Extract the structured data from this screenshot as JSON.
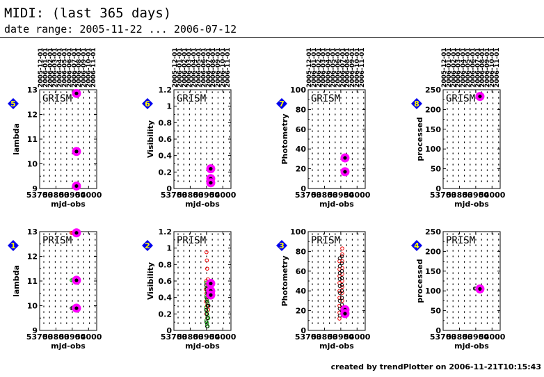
{
  "header": {
    "title": "MIDI: (last 365 days)",
    "subtitle": "date range: 2005-11-22 ... 2006-07-12"
  },
  "footer": {
    "text": "created by trendPlotter on 2006-11-21T10:15:43"
  },
  "colors": {
    "magenta": "#ff00ff",
    "badge": "#0000ee",
    "red": "#ee0000",
    "green": "#00bb00",
    "black": "#000000"
  },
  "chart_data": [
    {
      "type": "scatter",
      "id": "p5",
      "badge": "5",
      "label": "GRISM",
      "xlabel": "mjd-obs",
      "ylabel": "lambda",
      "xlim": [
        53700,
        54050
      ],
      "ylim": [
        9,
        13
      ],
      "xticks": [
        53700,
        53800,
        53900,
        54000
      ],
      "xtick_labels": [
        "53700",
        "53800",
        "53900",
        "54000"
      ],
      "yticks": [
        9,
        10,
        11,
        12,
        13
      ],
      "date_ticks": [
        "2005-12-01",
        "2006-01-01",
        "2006-02-01",
        "2006-03-01",
        "2006-04-01",
        "2006-05-01",
        "2006-06-01",
        "2006-07-01",
        "2006-08-01",
        "2006-09-01",
        "2006-10-01",
        "2006-11-01"
      ],
      "series": [
        {
          "style": "highlight",
          "points": [
            [
              53926,
              12.85
            ],
            [
              53926,
              10.5
            ],
            [
              53926,
              9.1
            ]
          ]
        }
      ]
    },
    {
      "type": "scatter",
      "id": "p6",
      "badge": "6",
      "label": "GRISM",
      "xlabel": "mjd-obs",
      "ylabel": "Visibility",
      "xlim": [
        53700,
        54050
      ],
      "ylim": [
        0,
        1.2
      ],
      "xticks": [
        53700,
        53800,
        53900,
        54000
      ],
      "xtick_labels": [
        "53700",
        "53800",
        "53900",
        "54000"
      ],
      "yticks": [
        0,
        0.2,
        0.4,
        0.6,
        0.8,
        1,
        1.2
      ],
      "date_ticks": [
        "2005-12-01",
        "2006-01-01",
        "2006-02-01",
        "2006-03-01",
        "2006-04-01",
        "2006-05-01",
        "2006-06-01",
        "2006-07-01",
        "2006-08-01",
        "2006-09-01",
        "2006-10-01",
        "2006-11-01"
      ],
      "series": [
        {
          "style": "highlight",
          "points": [
            [
              53926,
              0.24
            ],
            [
              53926,
              0.12
            ],
            [
              53926,
              0.07
            ]
          ]
        }
      ]
    },
    {
      "type": "scatter",
      "id": "p7",
      "badge": "7",
      "label": "GRISM",
      "xlabel": "mjd-obs",
      "ylabel": "Photometry",
      "xlim": [
        53700,
        54050
      ],
      "ylim": [
        0,
        100
      ],
      "xticks": [
        53700,
        53800,
        53900,
        54000
      ],
      "xtick_labels": [
        "53700",
        "53800",
        "53900",
        "54000"
      ],
      "yticks": [
        0,
        20,
        40,
        60,
        80,
        100
      ],
      "date_ticks": [
        "2005-12-01",
        "2006-01-01",
        "2006-02-01",
        "2006-03-01",
        "2006-04-01",
        "2006-05-01",
        "2006-06-01",
        "2006-07-01",
        "2006-08-01",
        "2006-09-01",
        "2006-10-01",
        "2006-11-01"
      ],
      "series": [
        {
          "style": "highlight",
          "points": [
            [
              53926,
              31
            ],
            [
              53926,
              17
            ]
          ]
        }
      ]
    },
    {
      "type": "scatter",
      "id": "p8",
      "badge": "8",
      "label": "GRISM",
      "xlabel": "mjd-obs",
      "ylabel": "processed",
      "xlim": [
        53700,
        54050
      ],
      "ylim": [
        0,
        250
      ],
      "xticks": [
        53700,
        53800,
        53900,
        54000
      ],
      "xtick_labels": [
        "53700",
        "53800",
        "53900",
        "54000"
      ],
      "yticks": [
        0,
        50,
        100,
        150,
        200,
        250
      ],
      "date_ticks": [
        "2005-12-01",
        "2006-01-01",
        "2006-02-01",
        "2006-03-01",
        "2006-04-01",
        "2006-05-01",
        "2006-06-01",
        "2006-07-01",
        "2006-08-01",
        "2006-09-01",
        "2006-10-01",
        "2006-11-01"
      ],
      "series": [
        {
          "style": "highlight",
          "points": [
            [
              53926,
              233
            ]
          ]
        }
      ]
    },
    {
      "type": "scatter",
      "id": "p1",
      "badge": "1",
      "label": "PRISM",
      "xlabel": "mjd-obs",
      "ylabel": "lambda",
      "xlim": [
        53700,
        54050
      ],
      "ylim": [
        9,
        13
      ],
      "xticks": [
        53700,
        53800,
        53900,
        54000
      ],
      "xtick_labels": [
        "53700",
        "53800",
        "53900",
        "54000"
      ],
      "yticks": [
        9,
        10,
        11,
        12,
        13
      ],
      "series": [
        {
          "style": "open-red",
          "points": [
            [
              53895,
              12.95
            ],
            [
              53901,
              12.95
            ],
            [
              53907,
              12.95
            ],
            [
              53913,
              12.95
            ]
          ]
        },
        {
          "style": "open-green",
          "points": [
            [
              53896,
              11.03
            ],
            [
              53902,
              11.03
            ],
            [
              53908,
              11.03
            ],
            [
              53914,
              11.03
            ]
          ]
        },
        {
          "style": "open-black",
          "points": [
            [
              53897,
              9.9
            ],
            [
              53903,
              9.9
            ],
            [
              53909,
              9.9
            ],
            [
              53915,
              9.9
            ]
          ]
        },
        {
          "style": "highlight",
          "points": [
            [
              53926,
              12.95
            ],
            [
              53926,
              11.03
            ],
            [
              53926,
              9.9
            ]
          ]
        }
      ]
    },
    {
      "type": "scatter",
      "id": "p2",
      "badge": "2",
      "label": "PRISM",
      "xlabel": "mjd-obs",
      "ylabel": "Visibility",
      "xlim": [
        53700,
        54050
      ],
      "ylim": [
        0,
        1.2
      ],
      "xticks": [
        53700,
        53800,
        53900,
        54000
      ],
      "xtick_labels": [
        "53700",
        "53800",
        "53900",
        "54000"
      ],
      "yticks": [
        0,
        0.2,
        0.4,
        0.6,
        0.8,
        1,
        1.2
      ],
      "series": [
        {
          "style": "open-red",
          "points": [
            [
              53900,
              0.95
            ],
            [
              53902,
              0.85
            ],
            [
              53904,
              0.75
            ],
            [
              53898,
              0.6
            ],
            [
              53906,
              0.55
            ],
            [
              53900,
              0.45
            ],
            [
              53908,
              0.4
            ],
            [
              53896,
              0.35
            ],
            [
              53903,
              0.3
            ],
            [
              53910,
              0.25
            ],
            [
              53899,
              0.2
            ],
            [
              53905,
              0.15
            ],
            [
              53895,
              0.5
            ],
            [
              53909,
              0.62
            ],
            [
              53912,
              0.5
            ]
          ]
        },
        {
          "style": "open-green",
          "points": [
            [
              53897,
              0.58
            ],
            [
              53901,
              0.52
            ],
            [
              53905,
              0.47
            ],
            [
              53899,
              0.42
            ],
            [
              53903,
              0.38
            ],
            [
              53907,
              0.33
            ],
            [
              53897,
              0.28
            ],
            [
              53901,
              0.23
            ],
            [
              53905,
              0.18
            ],
            [
              53899,
              0.12
            ],
            [
              53903,
              0.08
            ],
            [
              53907,
              0.05
            ],
            [
              53911,
              0.15
            ]
          ]
        },
        {
          "style": "open-black",
          "points": [
            [
              53898,
              0.55
            ],
            [
              53902,
              0.5
            ],
            [
              53906,
              0.45
            ],
            [
              53900,
              0.4
            ],
            [
              53904,
              0.35
            ],
            [
              53908,
              0.3
            ],
            [
              53898,
              0.25
            ],
            [
              53902,
              0.2
            ],
            [
              53906,
              0.15
            ],
            [
              53900,
              0.1
            ],
            [
              53904,
              0.05
            ],
            [
              53910,
              0.45
            ],
            [
              53912,
              0.3
            ]
          ]
        },
        {
          "style": "highlight",
          "points": [
            [
              53926,
              0.57
            ],
            [
              53926,
              0.48
            ],
            [
              53926,
              0.43
            ]
          ]
        }
      ]
    },
    {
      "type": "scatter",
      "id": "p3",
      "badge": "3",
      "label": "PRISM",
      "xlabel": "mjd-obs",
      "ylabel": "Photometry",
      "xlim": [
        53700,
        54050
      ],
      "ylim": [
        0,
        100
      ],
      "xticks": [
        53700,
        53800,
        53900,
        54000
      ],
      "xtick_labels": [
        "53700",
        "53800",
        "53900",
        "54000"
      ],
      "yticks": [
        0,
        20,
        40,
        60,
        80,
        100
      ],
      "series": [
        {
          "style": "open-red",
          "points": [
            [
              53892,
              70
            ],
            [
              53892,
              62
            ],
            [
              53892,
              55
            ],
            [
              53892,
              48
            ],
            [
              53892,
              40
            ],
            [
              53892,
              33
            ],
            [
              53892,
              25
            ],
            [
              53892,
              18
            ],
            [
              53892,
              12
            ],
            [
              53909,
              83
            ],
            [
              53909,
              77
            ],
            [
              53909,
              70
            ],
            [
              53909,
              63
            ],
            [
              53909,
              57
            ],
            [
              53909,
              50
            ],
            [
              53909,
              44
            ],
            [
              53909,
              38
            ],
            [
              53909,
              30
            ],
            [
              53909,
              23
            ],
            [
              53909,
              17
            ]
          ]
        },
        {
          "style": "open-black",
          "points": [
            [
              53894,
              73
            ],
            [
              53894,
              65
            ],
            [
              53894,
              58
            ],
            [
              53894,
              52
            ],
            [
              53894,
              45
            ],
            [
              53894,
              38
            ],
            [
              53894,
              30
            ],
            [
              53894,
              22
            ],
            [
              53894,
              15
            ],
            [
              53907,
              75
            ],
            [
              53907,
              68
            ],
            [
              53907,
              60
            ],
            [
              53907,
              53
            ],
            [
              53907,
              46
            ],
            [
              53907,
              40
            ],
            [
              53907,
              33
            ],
            [
              53907,
              26
            ],
            [
              53907,
              20
            ]
          ]
        },
        {
          "style": "highlight",
          "points": [
            [
              53926,
              21
            ],
            [
              53926,
              17
            ]
          ]
        }
      ]
    },
    {
      "type": "scatter",
      "id": "p4",
      "badge": "4",
      "label": "PRISM",
      "xlabel": "mjd-obs",
      "ylabel": "processed",
      "xlim": [
        53700,
        54050
      ],
      "ylim": [
        0,
        250
      ],
      "xticks": [
        53700,
        53800,
        53900,
        54000
      ],
      "xtick_labels": [
        "53700",
        "53800",
        "53900",
        "54000"
      ],
      "yticks": [
        0,
        50,
        100,
        150,
        200,
        250
      ],
      "series": [
        {
          "style": "open-black",
          "points": [
            [
              53895,
              106
            ],
            [
              53903,
              106
            ],
            [
              53911,
              106
            ]
          ]
        },
        {
          "style": "highlight",
          "points": [
            [
              53926,
              105
            ]
          ]
        }
      ]
    }
  ]
}
